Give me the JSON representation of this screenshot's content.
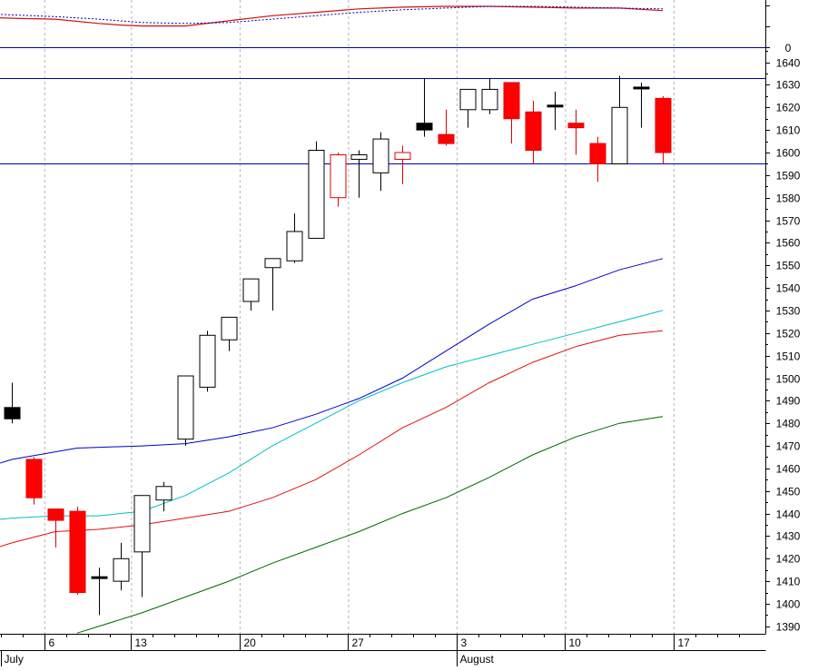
{
  "chart_data": {
    "type": "candlestick",
    "y_axis": {
      "side": "right",
      "range": [
        1385,
        1648
      ],
      "ticks": [
        1390,
        1400,
        1410,
        1420,
        1430,
        1440,
        1450,
        1460,
        1470,
        1480,
        1490,
        1500,
        1510,
        1520,
        1530,
        1540,
        1550,
        1560,
        1570,
        1580,
        1590,
        1600,
        1610,
        1620,
        1630,
        1640
      ]
    },
    "x_axis": {
      "day_ticks": [
        {
          "label": "6",
          "idx": 2
        },
        {
          "label": "13",
          "idx": 6
        },
        {
          "label": "20",
          "idx": 11
        },
        {
          "label": "27",
          "idx": 16
        },
        {
          "label": "3",
          "idx": 21
        },
        {
          "label": "10",
          "idx": 26
        },
        {
          "label": "17",
          "idx": 31
        }
      ],
      "month_labels": [
        {
          "label": "July",
          "idx": 0
        },
        {
          "label": "August",
          "idx": 21
        }
      ],
      "grid": true
    },
    "candles": [
      {
        "o": 1487,
        "h": 1498,
        "l": 1480,
        "c": 1482,
        "color": "black"
      },
      {
        "o": 1464,
        "h": 1465,
        "l": 1444,
        "c": 1447,
        "color": "red"
      },
      {
        "o": 1437,
        "h": 1442,
        "l": 1425,
        "c": 1442,
        "color": "red"
      },
      {
        "o": 1441,
        "h": 1443,
        "l": 1404,
        "c": 1405,
        "color": "red"
      },
      {
        "o": 1412,
        "h": 1416,
        "l": 1395,
        "c": 1412,
        "color": "black"
      },
      {
        "o": 1410,
        "h": 1427,
        "l": 1406,
        "c": 1420,
        "color": "white"
      },
      {
        "o": 1423,
        "h": 1448,
        "l": 1403,
        "c": 1448,
        "color": "white"
      },
      {
        "o": 1446,
        "h": 1454,
        "l": 1441,
        "c": 1452,
        "color": "white"
      },
      {
        "o": 1473,
        "h": 1501,
        "l": 1470,
        "c": 1501,
        "color": "white"
      },
      {
        "o": 1496,
        "h": 1521,
        "l": 1494,
        "c": 1519,
        "color": "white"
      },
      {
        "o": 1517,
        "h": 1527,
        "l": 1512,
        "c": 1527,
        "color": "white"
      },
      {
        "o": 1534,
        "h": 1544,
        "l": 1530,
        "c": 1544,
        "color": "white"
      },
      {
        "o": 1549,
        "h": 1553,
        "l": 1530,
        "c": 1553,
        "color": "white"
      },
      {
        "o": 1552,
        "h": 1573,
        "l": 1551,
        "c": 1565,
        "color": "white"
      },
      {
        "o": 1562,
        "h": 1605,
        "l": 1562,
        "c": 1601,
        "color": "white"
      },
      {
        "o": 1599,
        "h": 1600,
        "l": 1576,
        "c": 1580,
        "color": "red-hollow"
      },
      {
        "o": 1597,
        "h": 1601,
        "l": 1580,
        "c": 1599,
        "color": "white"
      },
      {
        "o": 1591,
        "h": 1609,
        "l": 1583,
        "c": 1606,
        "color": "white"
      },
      {
        "o": 1597,
        "h": 1603,
        "l": 1586,
        "c": 1600,
        "color": "red-hollow"
      },
      {
        "o": 1613,
        "h": 1633,
        "l": 1607,
        "c": 1610,
        "color": "black"
      },
      {
        "o": 1608,
        "h": 1619,
        "l": 1603,
        "c": 1604,
        "color": "red"
      },
      {
        "o": 1619,
        "h": 1628,
        "l": 1611,
        "c": 1628,
        "color": "white"
      },
      {
        "o": 1619,
        "h": 1633,
        "l": 1617,
        "c": 1628,
        "color": "white"
      },
      {
        "o": 1631,
        "h": 1631,
        "l": 1604,
        "c": 1615,
        "color": "red"
      },
      {
        "o": 1618,
        "h": 1623,
        "l": 1595,
        "c": 1601,
        "color": "red"
      },
      {
        "o": 1620,
        "h": 1627,
        "l": 1610,
        "c": 1621,
        "color": "black"
      },
      {
        "o": 1613,
        "h": 1619,
        "l": 1599,
        "c": 1611,
        "color": "red"
      },
      {
        "o": 1604,
        "h": 1607,
        "l": 1587,
        "c": 1595,
        "color": "red"
      },
      {
        "o": 1595,
        "h": 1634,
        "l": 1595,
        "c": 1620,
        "color": "white"
      },
      {
        "o": 1629,
        "h": 1631,
        "l": 1611,
        "c": 1629,
        "color": "black"
      },
      {
        "o": 1624,
        "h": 1625,
        "l": 1595,
        "c": 1600,
        "color": "red"
      }
    ],
    "h_lines": [
      {
        "y": 1633,
        "color": "#0000b0"
      },
      {
        "y": 1595,
        "color": "#0000b0"
      }
    ],
    "moving_averages": [
      {
        "color": "#0000c8",
        "points": [
          [
            -1,
            1461
          ],
          [
            0,
            1464
          ],
          [
            3,
            1469
          ],
          [
            6,
            1470
          ],
          [
            8,
            1471
          ],
          [
            10,
            1474
          ],
          [
            12,
            1478
          ],
          [
            14,
            1484
          ],
          [
            16,
            1491
          ],
          [
            18,
            1500
          ],
          [
            20,
            1512
          ],
          [
            22,
            1524
          ],
          [
            24,
            1535
          ],
          [
            26,
            1541
          ],
          [
            28,
            1548
          ],
          [
            30,
            1553
          ]
        ]
      },
      {
        "color": "#00c0c0",
        "points": [
          [
            -1,
            1437
          ],
          [
            0,
            1438
          ],
          [
            2,
            1439
          ],
          [
            4,
            1439
          ],
          [
            6,
            1441
          ],
          [
            8,
            1448
          ],
          [
            10,
            1458
          ],
          [
            12,
            1470
          ],
          [
            14,
            1480
          ],
          [
            16,
            1490
          ],
          [
            18,
            1498
          ],
          [
            20,
            1505
          ],
          [
            22,
            1510
          ],
          [
            24,
            1515
          ],
          [
            26,
            1520
          ],
          [
            28,
            1525
          ],
          [
            30,
            1530
          ]
        ]
      },
      {
        "color": "#e01010",
        "points": [
          [
            -1,
            1424
          ],
          [
            0,
            1427
          ],
          [
            2,
            1432
          ],
          [
            4,
            1433
          ],
          [
            6,
            1435
          ],
          [
            8,
            1438
          ],
          [
            10,
            1441
          ],
          [
            12,
            1447
          ],
          [
            14,
            1455
          ],
          [
            16,
            1466
          ],
          [
            18,
            1478
          ],
          [
            20,
            1487
          ],
          [
            22,
            1498
          ],
          [
            24,
            1507
          ],
          [
            26,
            1514
          ],
          [
            28,
            1519
          ],
          [
            30,
            1521
          ]
        ]
      },
      {
        "color": "#006600",
        "points": [
          [
            3,
            1387
          ],
          [
            4,
            1390
          ],
          [
            6,
            1396
          ],
          [
            8,
            1403
          ],
          [
            10,
            1410
          ],
          [
            12,
            1418
          ],
          [
            14,
            1425
          ],
          [
            16,
            1432
          ],
          [
            18,
            1440
          ],
          [
            20,
            1447
          ],
          [
            22,
            1456
          ],
          [
            24,
            1466
          ],
          [
            26,
            1474
          ],
          [
            28,
            1480
          ],
          [
            30,
            1483
          ]
        ]
      }
    ],
    "indicator_panel": {
      "zero_label": "0",
      "line_color": "#0000b0",
      "red_series": [
        [
          -1,
          35
        ],
        [
          0,
          34
        ],
        [
          2,
          33
        ],
        [
          4,
          28
        ],
        [
          5,
          26
        ],
        [
          6,
          25
        ],
        [
          8,
          25
        ],
        [
          10,
          31
        ],
        [
          12,
          37
        ],
        [
          14,
          41
        ],
        [
          16,
          45
        ],
        [
          18,
          47
        ],
        [
          20,
          48
        ],
        [
          22,
          48
        ],
        [
          24,
          47
        ],
        [
          26,
          46
        ],
        [
          28,
          46
        ],
        [
          30,
          43
        ]
      ],
      "blue_dotted_series": [
        [
          -1,
          39
        ],
        [
          0,
          38
        ],
        [
          2,
          36
        ],
        [
          4,
          33
        ],
        [
          6,
          29
        ],
        [
          8,
          28
        ],
        [
          10,
          29
        ],
        [
          12,
          33
        ],
        [
          14,
          37
        ],
        [
          16,
          41
        ],
        [
          18,
          44
        ],
        [
          20,
          46
        ],
        [
          22,
          48
        ],
        [
          24,
          48
        ],
        [
          26,
          47
        ],
        [
          28,
          46
        ],
        [
          30,
          45
        ]
      ]
    }
  }
}
